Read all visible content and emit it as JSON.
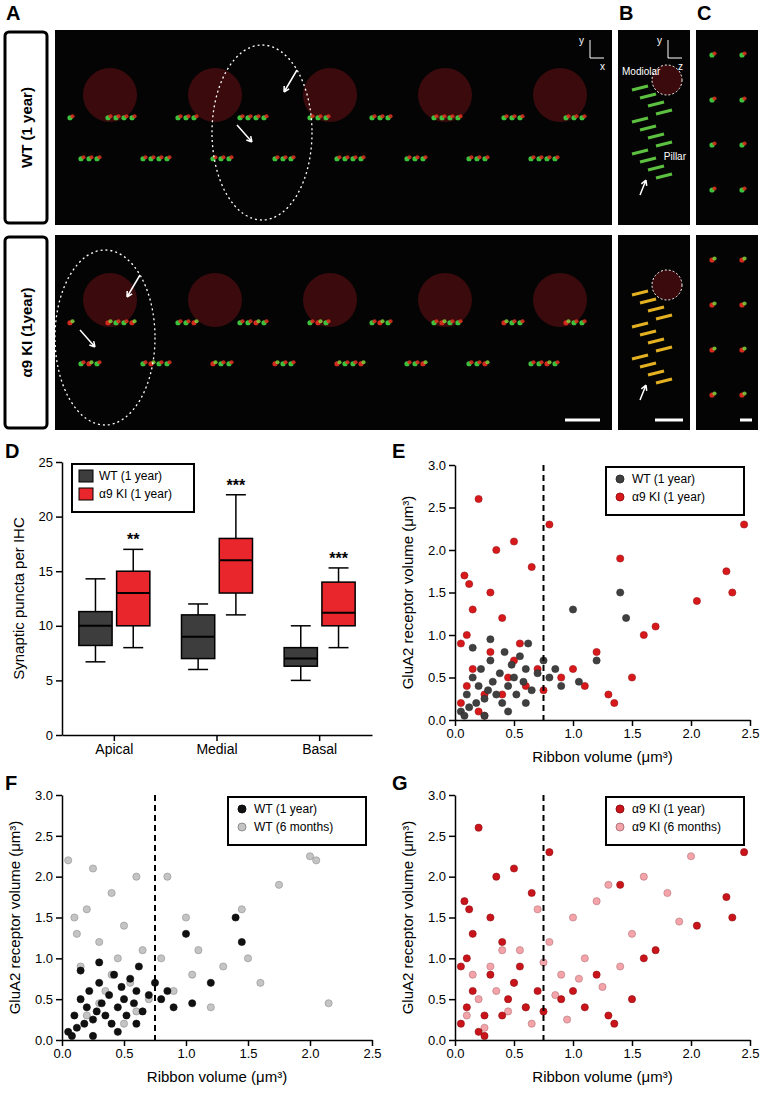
{
  "image_panels": {
    "letters": [
      "A",
      "B",
      "C"
    ],
    "rows": [
      "WT (1 year)",
      "α9 KI (1year)"
    ],
    "axes_xy": [
      "y",
      "x"
    ],
    "axes_yz": [
      "y",
      "z"
    ],
    "orientation_labels": [
      "Modiolar",
      "Pillar"
    ]
  },
  "chart_data": [
    {
      "type": "box",
      "panel": "D",
      "ylabel": "Synaptic puncta per IHC",
      "categories": [
        "Apical",
        "Medial",
        "Basal"
      ],
      "series": [
        {
          "name": "WT (1 year)",
          "color": "#3d3d3d",
          "values": [
            {
              "min": 6.7,
              "q1": 8.2,
              "median": 10,
              "q3": 11.3,
              "max": 14.3
            },
            {
              "min": 6,
              "q1": 7,
              "median": 9,
              "q3": 11,
              "max": 12
            },
            {
              "min": 5,
              "q1": 6.3,
              "median": 7,
              "q3": 8,
              "max": 10
            }
          ]
        },
        {
          "name": "α9 KI (1 year)",
          "color": "#e8262b",
          "values": [
            {
              "min": 8,
              "q1": 10,
              "median": 13,
              "q3": 15,
              "max": 17
            },
            {
              "min": 11,
              "q1": 13,
              "median": 16,
              "q3": 18,
              "max": 22
            },
            {
              "min": 8,
              "q1": 10,
              "median": 11.2,
              "q3": 14,
              "max": 15.3
            }
          ]
        }
      ],
      "annotations": [
        "**",
        "***",
        "***"
      ],
      "ylim": [
        0,
        25
      ],
      "yticks": [
        0,
        5,
        10,
        15,
        20,
        25
      ],
      "legend": "top-left"
    },
    {
      "type": "scatter",
      "panel": "E",
      "xlabel": "Ribbon volume (μm³)",
      "ylabel": "GluA2 receptor volume (μm³)",
      "series": [
        {
          "name": "WT (1 year)",
          "color": "#404040",
          "x": [
            0.05,
            0.1,
            0.12,
            0.15,
            0.18,
            0.2,
            0.22,
            0.25,
            0.28,
            0.3,
            0.32,
            0.35,
            0.38,
            0.4,
            0.42,
            0.45,
            0.48,
            0.5,
            0.52,
            0.55,
            0.58,
            0.6,
            0.62,
            0.65,
            0.7,
            0.75,
            0.8,
            0.85,
            0.9,
            1.0,
            1.05,
            1.2,
            1.4,
            1.45,
            0.08,
            0.3,
            0.45,
            0.15,
            0.6,
            0.25
          ],
          "values": [
            0.1,
            0.3,
            0.15,
            0.5,
            0.2,
            0.4,
            0.6,
            0.25,
            0.35,
            0.7,
            0.45,
            0.3,
            0.55,
            0.2,
            0.8,
            0.4,
            0.65,
            0.5,
            0.3,
            0.75,
            0.45,
            0.6,
            0.9,
            0.35,
            0.55,
            0.7,
            0.5,
            0.6,
            0.4,
            1.3,
            0.45,
            0.7,
            1.5,
            1.2,
            0.05,
            0.95,
            0.1,
            0.85,
            0.2,
            0.05
          ]
        },
        {
          "name": "α9 KI (1 year)",
          "color": "#d7191c",
          "x": [
            0.05,
            0.08,
            0.1,
            0.12,
            0.15,
            0.2,
            0.25,
            0.3,
            0.35,
            0.4,
            0.45,
            0.5,
            0.55,
            0.6,
            0.65,
            0.7,
            0.1,
            0.2,
            0.3,
            0.05,
            0.4,
            0.15,
            0.5,
            0.8,
            0.9,
            1.0,
            1.1,
            1.2,
            1.3,
            1.4,
            1.5,
            1.6,
            1.7,
            2.05,
            2.3,
            2.35,
            2.45,
            1.35,
            0.25,
            0.75
          ],
          "values": [
            0.2,
            1.7,
            0.4,
            1.6,
            0.6,
            2.6,
            0.3,
            0.8,
            2.0,
            1.2,
            0.5,
            2.1,
            0.9,
            0.4,
            1.8,
            0.6,
            1.0,
            0.1,
            1.5,
            0.9,
            0.3,
            1.3,
            0.7,
            2.3,
            0.5,
            0.6,
            0.4,
            0.8,
            0.3,
            1.9,
            0.5,
            1.0,
            1.1,
            1.4,
            1.75,
            1.5,
            2.3,
            0.2,
            0.05,
            0.35
          ]
        }
      ],
      "vline": 0.75,
      "xlim": [
        0,
        2.5
      ],
      "xticks": [
        {
          "value": 0,
          "label": "0.0"
        },
        {
          "value": 0.5,
          "label": "0.5"
        },
        {
          "value": 1,
          "label": "1.0"
        },
        {
          "value": 1.5,
          "label": "1.5"
        },
        {
          "value": 2,
          "label": "2.0"
        },
        {
          "value": 2.5,
          "label": "2.5"
        }
      ],
      "ylim": [
        0,
        3
      ],
      "yticks": [
        {
          "value": 0,
          "label": "0.0"
        },
        {
          "value": 0.5,
          "label": "0.5"
        },
        {
          "value": 1,
          "label": "1.0"
        },
        {
          "value": 1.5,
          "label": "1.5"
        },
        {
          "value": 2,
          "label": "2.0"
        },
        {
          "value": 2.5,
          "label": "2.5"
        },
        {
          "value": 3,
          "label": "3.0"
        }
      ],
      "legend": "top-right"
    },
    {
      "type": "scatter",
      "panel": "F",
      "xlabel": "Ribbon volume (μm³)",
      "ylabel": "GluA2 receptor volume (μm³)",
      "series": [
        {
          "name": "WT (1 year)",
          "color": "#111111",
          "x": [
            0.05,
            0.1,
            0.12,
            0.15,
            0.18,
            0.2,
            0.22,
            0.25,
            0.28,
            0.3,
            0.32,
            0.35,
            0.38,
            0.4,
            0.42,
            0.45,
            0.48,
            0.5,
            0.52,
            0.55,
            0.58,
            0.6,
            0.62,
            0.65,
            0.7,
            0.75,
            0.8,
            0.85,
            0.9,
            1.0,
            1.05,
            1.2,
            1.4,
            1.45,
            0.08,
            0.3,
            0.45,
            0.15,
            0.6,
            0.25
          ],
          "values": [
            0.1,
            0.3,
            0.15,
            0.5,
            0.2,
            0.4,
            0.6,
            0.25,
            0.35,
            0.7,
            0.45,
            0.3,
            0.55,
            0.2,
            0.8,
            0.4,
            0.65,
            0.5,
            0.3,
            0.75,
            0.45,
            0.6,
            0.9,
            0.35,
            0.55,
            0.7,
            0.5,
            0.6,
            0.4,
            1.3,
            0.45,
            0.7,
            1.5,
            1.2,
            0.05,
            0.95,
            0.1,
            0.85,
            0.2,
            0.05
          ]
        },
        {
          "name": "WT (6 months)",
          "color": "#c4c4c4",
          "x": [
            0.05,
            0.1,
            0.15,
            0.2,
            0.25,
            0.3,
            0.35,
            0.4,
            0.45,
            0.5,
            0.55,
            0.6,
            0.65,
            0.7,
            0.8,
            0.85,
            0.9,
            1.0,
            1.05,
            1.1,
            1.2,
            1.3,
            1.45,
            1.5,
            1.6,
            1.75,
            2.0,
            2.05,
            2.15,
            0.2,
            0.3,
            0.5,
            0.12,
            0.4,
            0.6
          ],
          "values": [
            2.2,
            1.5,
            0.9,
            1.6,
            2.1,
            1.2,
            0.6,
            1.8,
            1.0,
            1.4,
            0.7,
            2.0,
            1.1,
            0.5,
            1.0,
            2.0,
            0.6,
            1.5,
            0.8,
            1.1,
            0.4,
            0.9,
            1.6,
            1.0,
            0.7,
            1.9,
            2.25,
            2.2,
            0.45,
            0.3,
            0.45,
            0.2,
            1.3,
            0.8,
            0.35
          ]
        }
      ],
      "vline": 0.75,
      "xlim": [
        0,
        2.5
      ],
      "xticks": [
        {
          "value": 0,
          "label": "0.0"
        },
        {
          "value": 0.5,
          "label": "0.5"
        },
        {
          "value": 1,
          "label": "1.0"
        },
        {
          "value": 1.5,
          "label": "1.5"
        },
        {
          "value": 2,
          "label": "2.0"
        },
        {
          "value": 2.5,
          "label": "2.5"
        }
      ],
      "ylim": [
        0,
        3
      ],
      "yticks": [
        {
          "value": 0,
          "label": "0.0"
        },
        {
          "value": 0.5,
          "label": "0.5"
        },
        {
          "value": 1,
          "label": "1.0"
        },
        {
          "value": 1.5,
          "label": "1.5"
        },
        {
          "value": 2,
          "label": "2.0"
        },
        {
          "value": 2.5,
          "label": "2.5"
        },
        {
          "value": 3,
          "label": "3.0"
        }
      ],
      "legend": "top-right"
    },
    {
      "type": "scatter",
      "panel": "G",
      "xlabel": "Ribbon volume (μm³)",
      "ylabel": "GluA2 receptor volume (μm³)",
      "series": [
        {
          "name": "α9 KI (1 year)",
          "color": "#c8141a",
          "x": [
            0.05,
            0.08,
            0.1,
            0.12,
            0.15,
            0.2,
            0.25,
            0.3,
            0.35,
            0.4,
            0.45,
            0.5,
            0.55,
            0.6,
            0.65,
            0.7,
            0.1,
            0.2,
            0.3,
            0.05,
            0.4,
            0.15,
            0.5,
            0.8,
            0.9,
            1.0,
            1.1,
            1.2,
            1.3,
            1.4,
            1.5,
            1.6,
            1.7,
            2.05,
            2.3,
            2.35,
            2.45,
            1.35,
            0.25,
            0.75
          ],
          "values": [
            0.2,
            1.7,
            0.4,
            1.6,
            0.6,
            2.6,
            0.3,
            0.8,
            2.0,
            1.2,
            0.5,
            2.1,
            0.9,
            0.4,
            1.8,
            0.6,
            1.0,
            0.1,
            1.5,
            0.9,
            0.3,
            1.3,
            0.7,
            2.3,
            0.5,
            0.6,
            0.4,
            0.8,
            0.3,
            1.9,
            0.5,
            1.0,
            1.1,
            1.4,
            1.75,
            1.5,
            2.3,
            0.2,
            0.05,
            0.35
          ]
        },
        {
          "name": "α9 KI (6 months)",
          "color": "#f4a3a8",
          "x": [
            0.1,
            0.2,
            0.3,
            0.4,
            0.5,
            0.6,
            0.7,
            0.8,
            0.9,
            1.0,
            1.1,
            1.2,
            1.3,
            1.4,
            1.5,
            1.6,
            1.8,
            2.0,
            1.9,
            0.35,
            0.55,
            0.65,
            0.45,
            0.85,
            1.05,
            0.25,
            0.15,
            0.75,
            0.95,
            1.25
          ],
          "values": [
            0.3,
            0.5,
            0.9,
            1.1,
            0.7,
            0.4,
            1.6,
            1.2,
            0.8,
            1.5,
            1.0,
            1.7,
            1.9,
            0.9,
            1.3,
            2.0,
            1.8,
            2.25,
            1.45,
            0.6,
            1.1,
            0.2,
            0.35,
            0.55,
            0.75,
            0.15,
            0.8,
            0.95,
            0.25,
            0.65
          ]
        }
      ],
      "vline": 0.75,
      "xlim": [
        0,
        2.5
      ],
      "xticks": [
        {
          "value": 0,
          "label": "0.0"
        },
        {
          "value": 0.5,
          "label": "0.5"
        },
        {
          "value": 1,
          "label": "1.0"
        },
        {
          "value": 1.5,
          "label": "1.5"
        },
        {
          "value": 2,
          "label": "2.0"
        },
        {
          "value": 2.5,
          "label": "2.5"
        }
      ],
      "ylim": [
        0,
        3
      ],
      "yticks": [
        {
          "value": 0,
          "label": "0.0"
        },
        {
          "value": 0.5,
          "label": "0.5"
        },
        {
          "value": 1,
          "label": "1.0"
        },
        {
          "value": 1.5,
          "label": "1.5"
        },
        {
          "value": 2,
          "label": "2.0"
        },
        {
          "value": 2.5,
          "label": "2.5"
        },
        {
          "value": 3,
          "label": "3.0"
        }
      ],
      "legend": "top-right"
    }
  ]
}
